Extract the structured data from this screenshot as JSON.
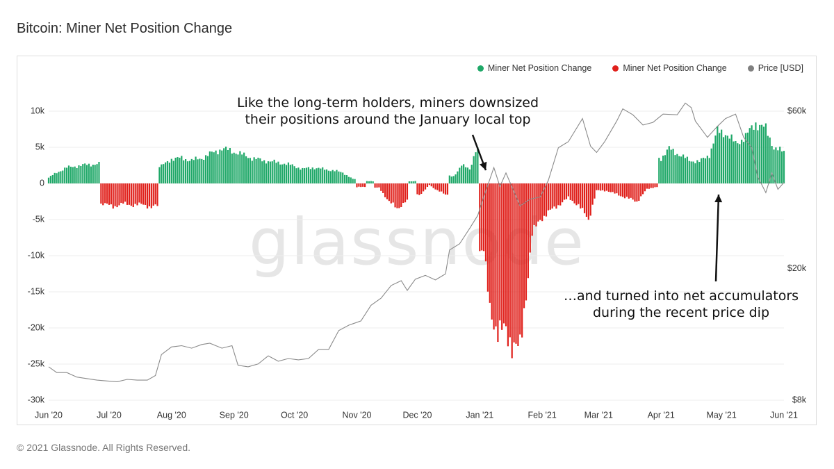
{
  "title": "Bitcoin: Miner Net Position Change",
  "footer": "© 2021 Glassnode. All Rights Reserved.",
  "watermark": "glassnode",
  "colors": {
    "positive": "#1fa868",
    "negative": "#e0201b",
    "price": "#8a8a8a"
  },
  "legend": [
    {
      "label": "Miner Net Position Change",
      "color": "#1fa868"
    },
    {
      "label": "Miner Net Position Change",
      "color": "#e0201b"
    },
    {
      "label": "Price [USD]",
      "color": "#808080"
    }
  ],
  "annotations": {
    "top": [
      "Like the long-term holders, miners downsized",
      "their positions around the January local top"
    ],
    "bottom": [
      "…and turned into net accumulators",
      "during the recent price dip"
    ]
  },
  "chart_data": {
    "type": "bar",
    "x_start": "2020-06-01",
    "x_end": "2021-06-01",
    "x_ticks": [
      "Jun '20",
      "Jul '20",
      "Aug '20",
      "Sep '20",
      "Oct '20",
      "Nov '20",
      "Dec '20",
      "Jan '21",
      "Feb '21",
      "Mar '21",
      "Apr '21",
      "May '21",
      "Jun '21"
    ],
    "y_left_ticks": [
      "10k",
      "5k",
      "0",
      "-5k",
      "-10k",
      "-15k",
      "-20k",
      "-25k",
      "-30k"
    ],
    "y_left_lim": [
      -30000,
      10000
    ],
    "y_right_ticks": [
      "$60k",
      "$20k",
      "$8k"
    ],
    "y_right_scale": "log",
    "y_right_lim": [
      8000,
      60000
    ],
    "grid": "horizontal",
    "legend_position": "top-right",
    "series": [
      {
        "name": "Miner Net Position Change",
        "type": "bar",
        "points": [
          [
            "2020-06-01",
            800
          ],
          [
            "2020-06-05",
            1500
          ],
          [
            "2020-06-10",
            2200
          ],
          [
            "2020-06-15",
            2400
          ],
          [
            "2020-06-20",
            2600
          ],
          [
            "2020-06-26",
            2700
          ],
          [
            "2020-06-28",
            -2800
          ],
          [
            "2020-07-03",
            -3200
          ],
          [
            "2020-07-08",
            -2800
          ],
          [
            "2020-07-13",
            -3000
          ],
          [
            "2020-07-18",
            -2900
          ],
          [
            "2020-07-22",
            -3300
          ],
          [
            "2020-07-25",
            -3100
          ],
          [
            "2020-07-27",
            2400
          ],
          [
            "2020-08-01",
            3400
          ],
          [
            "2020-08-06",
            3500
          ],
          [
            "2020-08-11",
            3200
          ],
          [
            "2020-08-16",
            3500
          ],
          [
            "2020-08-21",
            4200
          ],
          [
            "2020-08-26",
            4800
          ],
          [
            "2020-08-31",
            4500
          ],
          [
            "2020-09-05",
            4000
          ],
          [
            "2020-09-10",
            3500
          ],
          [
            "2020-09-15",
            3200
          ],
          [
            "2020-09-20",
            3000
          ],
          [
            "2020-09-25",
            2800
          ],
          [
            "2020-09-30",
            2500
          ],
          [
            "2020-10-05",
            2000
          ],
          [
            "2020-10-10",
            2200
          ],
          [
            "2020-10-15",
            2000
          ],
          [
            "2020-10-20",
            1800
          ],
          [
            "2020-10-25",
            1500
          ],
          [
            "2020-10-30",
            600
          ],
          [
            "2020-11-03",
            -500
          ],
          [
            "2020-11-08",
            300
          ],
          [
            "2020-11-12",
            -600
          ],
          [
            "2020-11-17",
            -2500
          ],
          [
            "2020-11-21",
            -3500
          ],
          [
            "2020-11-25",
            -2500
          ],
          [
            "2020-11-29",
            300
          ],
          [
            "2020-12-03",
            -1500
          ],
          [
            "2020-12-07",
            -200
          ],
          [
            "2020-12-11",
            -1000
          ],
          [
            "2020-12-15",
            -1500
          ],
          [
            "2020-12-19",
            1000
          ],
          [
            "2020-12-23",
            2500
          ],
          [
            "2020-12-27",
            2000
          ],
          [
            "2020-12-30",
            4600
          ],
          [
            "2021-01-03",
            -9000
          ],
          [
            "2021-01-06",
            -18000
          ],
          [
            "2021-01-10",
            -20000
          ],
          [
            "2021-01-14",
            -21000
          ],
          [
            "2021-01-18",
            -22000
          ],
          [
            "2021-01-21",
            -23500
          ],
          [
            "2021-01-24",
            -15000
          ],
          [
            "2021-01-27",
            -7000
          ],
          [
            "2021-01-31",
            -5000
          ],
          [
            "2021-02-04",
            -4000
          ],
          [
            "2021-02-09",
            -3000
          ],
          [
            "2021-02-14",
            -2000
          ],
          [
            "2021-02-19",
            -3000
          ],
          [
            "2021-02-24",
            -5000
          ],
          [
            "2021-02-28",
            -1000
          ],
          [
            "2021-03-05",
            -1000
          ],
          [
            "2021-03-10",
            -1500
          ],
          [
            "2021-03-15",
            -2000
          ],
          [
            "2021-03-20",
            -2500
          ],
          [
            "2021-03-25",
            -800
          ],
          [
            "2021-03-29",
            -500
          ],
          [
            "2021-04-01",
            3500
          ],
          [
            "2021-04-05",
            4800
          ],
          [
            "2021-04-10",
            4000
          ],
          [
            "2021-04-15",
            3200
          ],
          [
            "2021-04-20",
            3000
          ],
          [
            "2021-04-25",
            4000
          ],
          [
            "2021-04-29",
            7200
          ],
          [
            "2021-05-03",
            7000
          ],
          [
            "2021-05-08",
            5500
          ],
          [
            "2021-05-13",
            6500
          ],
          [
            "2021-05-18",
            8400
          ],
          [
            "2021-05-23",
            7500
          ],
          [
            "2021-05-27",
            5000
          ],
          [
            "2021-05-31",
            4400
          ]
        ]
      },
      {
        "name": "Price [USD]",
        "type": "line",
        "points": [
          [
            "2020-06-01",
            10100
          ],
          [
            "2020-06-05",
            9700
          ],
          [
            "2020-06-10",
            9700
          ],
          [
            "2020-06-15",
            9400
          ],
          [
            "2020-06-20",
            9300
          ],
          [
            "2020-06-25",
            9200
          ],
          [
            "2020-06-30",
            9150
          ],
          [
            "2020-07-05",
            9100
          ],
          [
            "2020-07-10",
            9250
          ],
          [
            "2020-07-15",
            9200
          ],
          [
            "2020-07-20",
            9200
          ],
          [
            "2020-07-24",
            9500
          ],
          [
            "2020-07-27",
            11000
          ],
          [
            "2020-08-01",
            11600
          ],
          [
            "2020-08-06",
            11700
          ],
          [
            "2020-08-11",
            11500
          ],
          [
            "2020-08-16",
            11800
          ],
          [
            "2020-08-20",
            11900
          ],
          [
            "2020-08-26",
            11500
          ],
          [
            "2020-08-31",
            11700
          ],
          [
            "2020-09-03",
            10200
          ],
          [
            "2020-09-08",
            10100
          ],
          [
            "2020-09-13",
            10300
          ],
          [
            "2020-09-18",
            10900
          ],
          [
            "2020-09-23",
            10500
          ],
          [
            "2020-09-28",
            10700
          ],
          [
            "2020-10-03",
            10600
          ],
          [
            "2020-10-08",
            10700
          ],
          [
            "2020-10-13",
            11400
          ],
          [
            "2020-10-18",
            11400
          ],
          [
            "2020-10-23",
            13000
          ],
          [
            "2020-10-28",
            13500
          ],
          [
            "2020-11-03",
            13900
          ],
          [
            "2020-11-08",
            15500
          ],
          [
            "2020-11-13",
            16300
          ],
          [
            "2020-11-18",
            17800
          ],
          [
            "2020-11-23",
            18400
          ],
          [
            "2020-11-26",
            17200
          ],
          [
            "2020-11-30",
            18600
          ],
          [
            "2020-12-05",
            19100
          ],
          [
            "2020-12-10",
            18500
          ],
          [
            "2020-12-15",
            19300
          ],
          [
            "2020-12-17",
            22800
          ],
          [
            "2020-12-22",
            23800
          ],
          [
            "2020-12-27",
            26500
          ],
          [
            "2020-12-31",
            29000
          ],
          [
            "2021-01-03",
            33000
          ],
          [
            "2021-01-08",
            40500
          ],
          [
            "2021-01-11",
            35500
          ],
          [
            "2021-01-14",
            39000
          ],
          [
            "2021-01-21",
            31000
          ],
          [
            "2021-01-26",
            32500
          ],
          [
            "2021-01-31",
            33000
          ],
          [
            "2021-02-04",
            37000
          ],
          [
            "2021-02-09",
            46500
          ],
          [
            "2021-02-14",
            48500
          ],
          [
            "2021-02-21",
            57000
          ],
          [
            "2021-02-25",
            47000
          ],
          [
            "2021-02-28",
            45000
          ],
          [
            "2021-03-04",
            48500
          ],
          [
            "2021-03-10",
            56000
          ],
          [
            "2021-03-13",
            61000
          ],
          [
            "2021-03-18",
            58500
          ],
          [
            "2021-03-23",
            54500
          ],
          [
            "2021-03-28",
            55500
          ],
          [
            "2021-04-02",
            58800
          ],
          [
            "2021-04-09",
            58500
          ],
          [
            "2021-04-13",
            63500
          ],
          [
            "2021-04-16",
            61500
          ],
          [
            "2021-04-18",
            56000
          ],
          [
            "2021-04-24",
            50000
          ],
          [
            "2021-04-29",
            54000
          ],
          [
            "2021-05-03",
            57000
          ],
          [
            "2021-05-08",
            58800
          ],
          [
            "2021-05-12",
            50000
          ],
          [
            "2021-05-16",
            46500
          ],
          [
            "2021-05-19",
            38000
          ],
          [
            "2021-05-23",
            34000
          ],
          [
            "2021-05-26",
            39000
          ],
          [
            "2021-05-29",
            34800
          ],
          [
            "2021-06-01",
            36500
          ]
        ]
      }
    ]
  }
}
